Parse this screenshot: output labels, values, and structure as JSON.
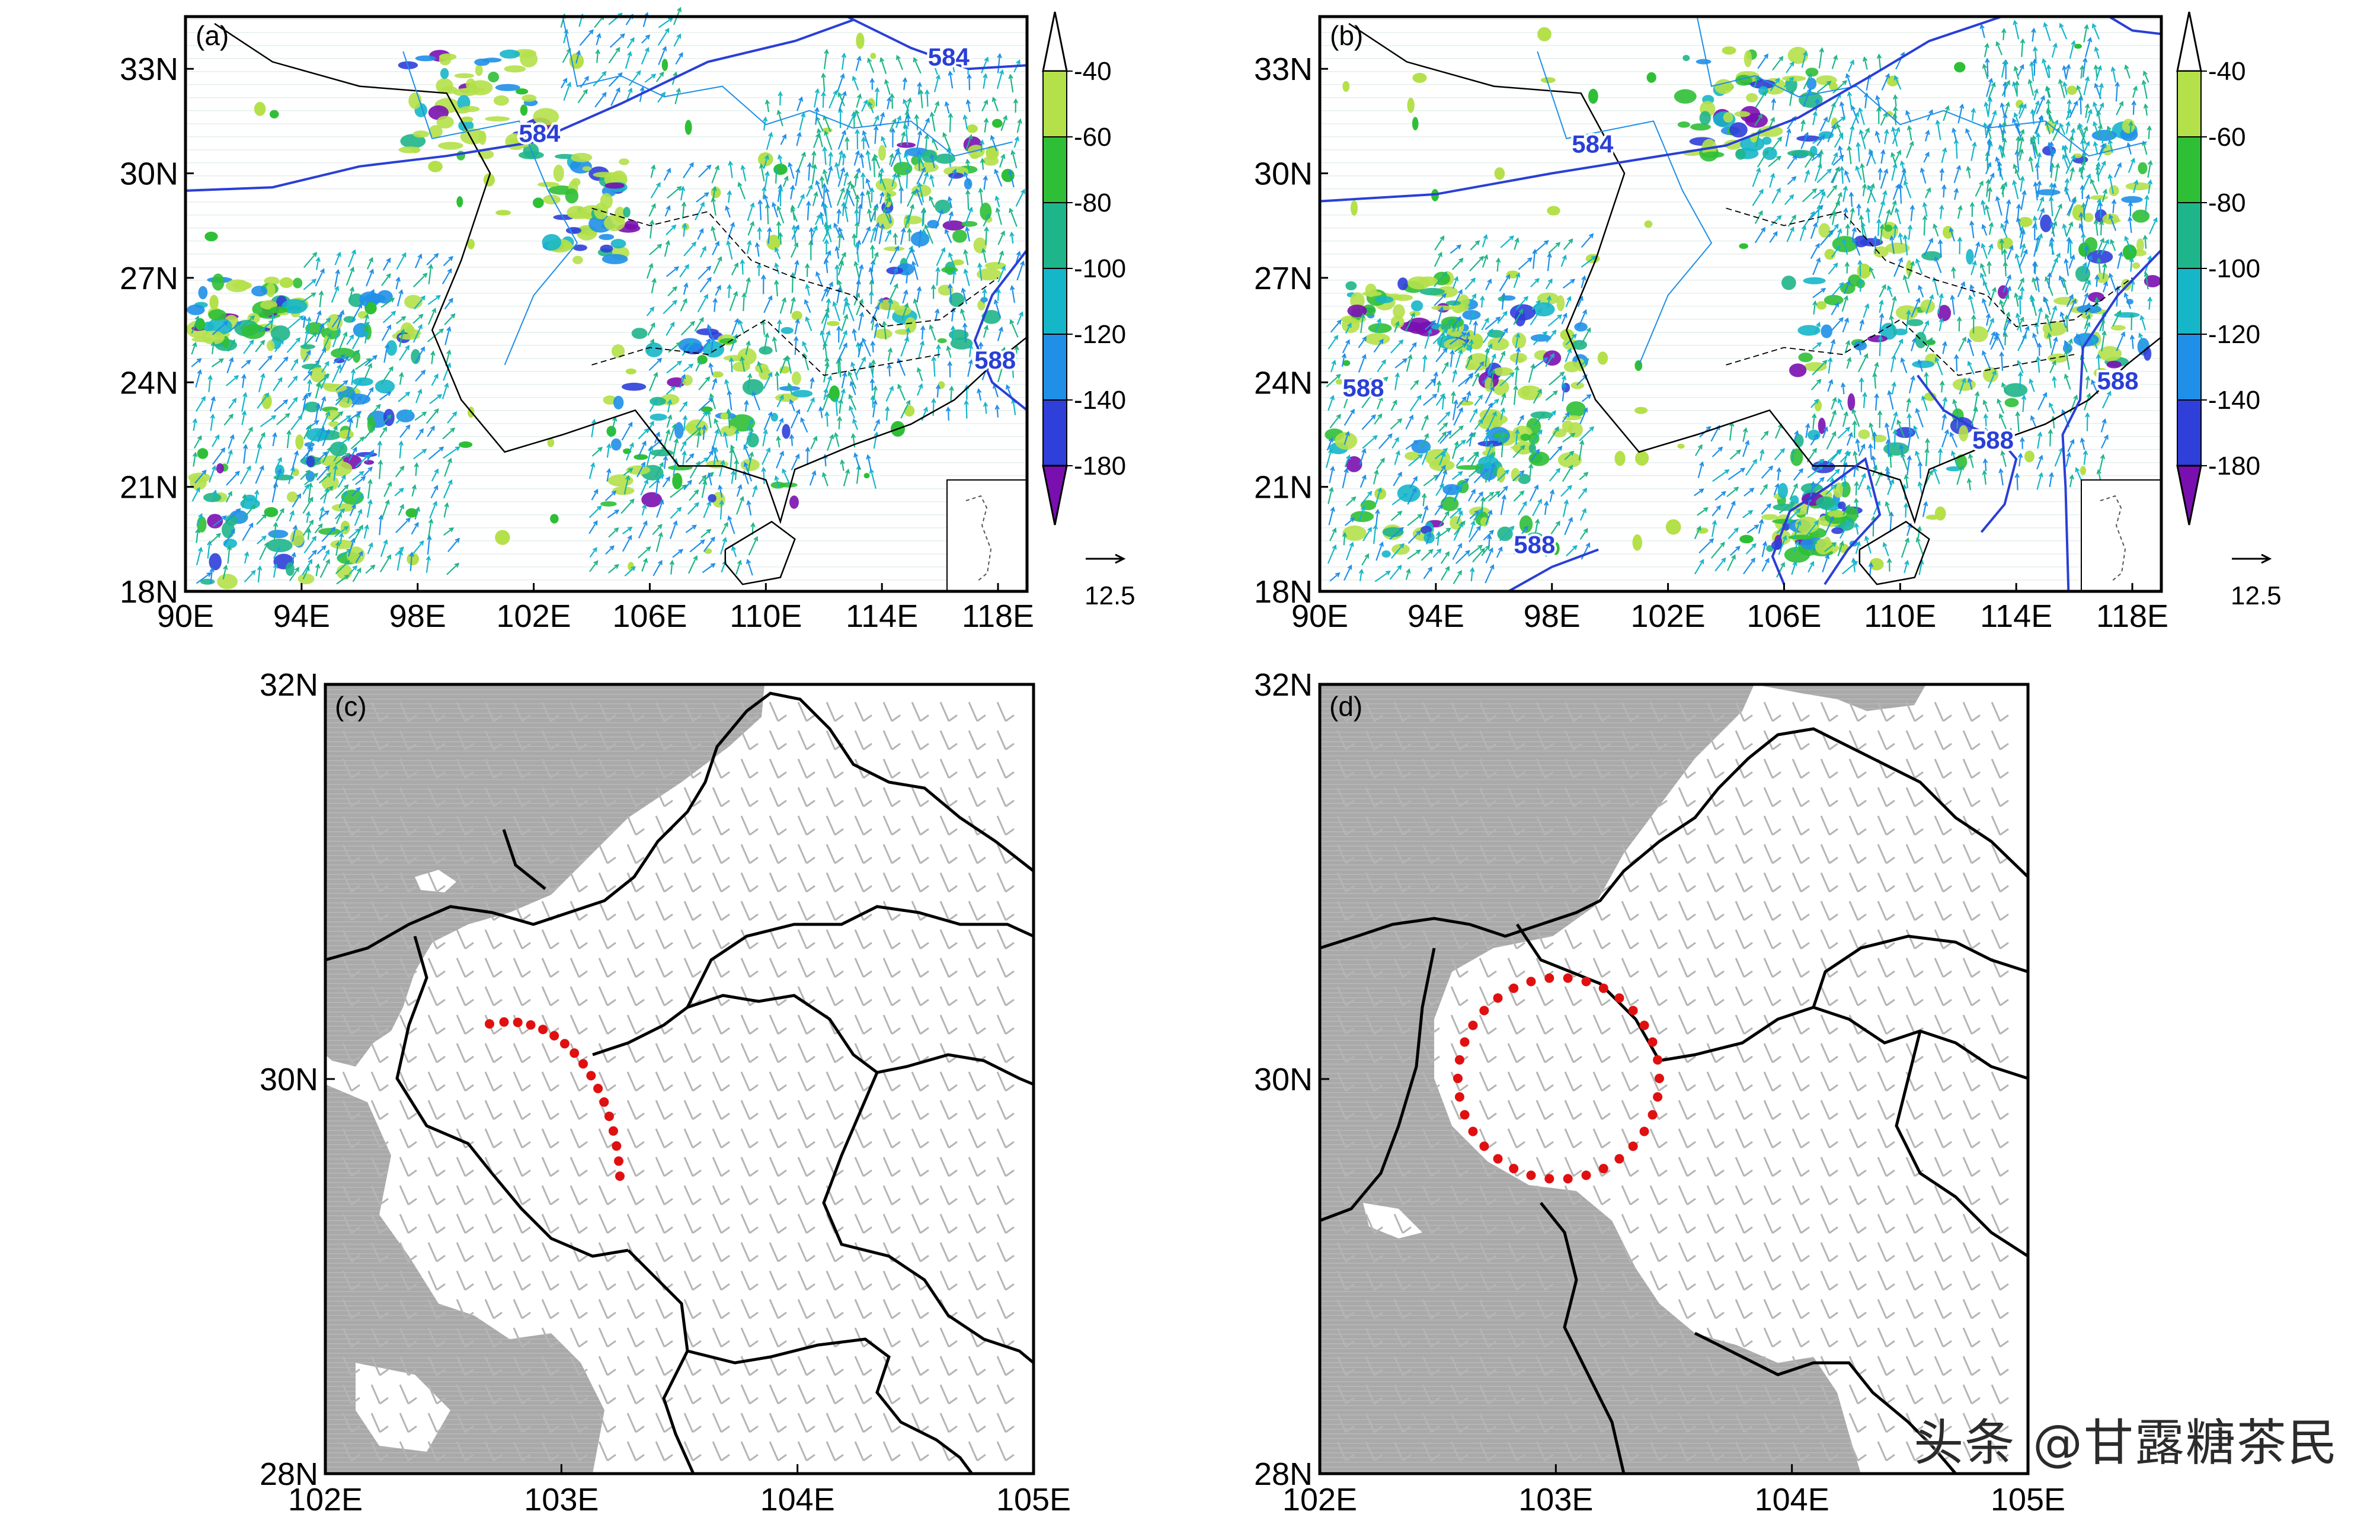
{
  "figure": {
    "watermark": "头条 @甘露糖茶民"
  },
  "colorbar": {
    "levels": [
      "-40",
      "-60",
      "-80",
      "-100",
      "-120",
      "-140",
      "-180"
    ],
    "colors": [
      "#b4e04a",
      "#2fbf36",
      "#1fb58a",
      "#16b6c9",
      "#1f8fe8",
      "#2f3fd9",
      "#7a0fb0"
    ],
    "vector_ref": "12.5"
  },
  "chart_data": [
    {
      "type": "heatmap",
      "panel_label": "(a)",
      "title": "",
      "x_ticks": [
        "90E",
        "94E",
        "98E",
        "102E",
        "106E",
        "110E",
        "114E",
        "118E"
      ],
      "y_ticks": [
        "18N",
        "21N",
        "24N",
        "27N",
        "30N",
        "33N"
      ],
      "xlim": [
        90,
        119
      ],
      "ylim": [
        18,
        34.5
      ],
      "contour_labels": [
        {
          "value": "584",
          "lon": 102.2,
          "lat": 30.9
        },
        {
          "value": "584",
          "lon": 116.3,
          "lat": 33.1
        },
        {
          "value": "588",
          "lon": 117.9,
          "lat": 24.4
        }
      ],
      "shading": "vertical velocity (contours -40 to -180) with wind vectors",
      "inset_map": true
    },
    {
      "type": "heatmap",
      "panel_label": "(b)",
      "title": "",
      "x_ticks": [
        "90E",
        "94E",
        "98E",
        "102E",
        "106E",
        "110E",
        "114E",
        "118E"
      ],
      "y_ticks": [
        "18N",
        "21N",
        "24N",
        "27N",
        "30N",
        "33N"
      ],
      "xlim": [
        90,
        119
      ],
      "ylim": [
        18,
        34.5
      ],
      "contour_labels": [
        {
          "value": "584",
          "lon": 99.4,
          "lat": 30.6
        },
        {
          "value": "588",
          "lon": 91.5,
          "lat": 23.6
        },
        {
          "value": "588",
          "lon": 97.4,
          "lat": 19.1
        },
        {
          "value": "588",
          "lon": 113.2,
          "lat": 22.1
        },
        {
          "value": "588",
          "lon": 117.5,
          "lat": 23.8
        }
      ],
      "shading": "vertical velocity (contours -40 to -180) with wind vectors",
      "inset_map": true
    },
    {
      "type": "heatmap",
      "panel_label": "(c)",
      "title": "",
      "x_ticks": [
        "102E",
        "103E",
        "104E",
        "105E"
      ],
      "y_ticks": [
        "28N",
        "30N",
        "32N"
      ],
      "xlim": [
        102,
        105
      ],
      "ylim": [
        28,
        32
      ],
      "shading": "terrain (gray) with wind barbs",
      "highlight": {
        "shape": "arc",
        "color": "#e01010",
        "style": "dotted"
      }
    },
    {
      "type": "heatmap",
      "panel_label": "(d)",
      "title": "",
      "x_ticks": [
        "102E",
        "103E",
        "104E",
        "105E"
      ],
      "y_ticks": [
        "28N",
        "30N",
        "32N"
      ],
      "xlim": [
        102,
        105
      ],
      "ylim": [
        28,
        32
      ],
      "shading": "terrain (gray) with wind barbs",
      "highlight": {
        "shape": "circle",
        "color": "#e01010",
        "style": "dotted"
      }
    }
  ]
}
